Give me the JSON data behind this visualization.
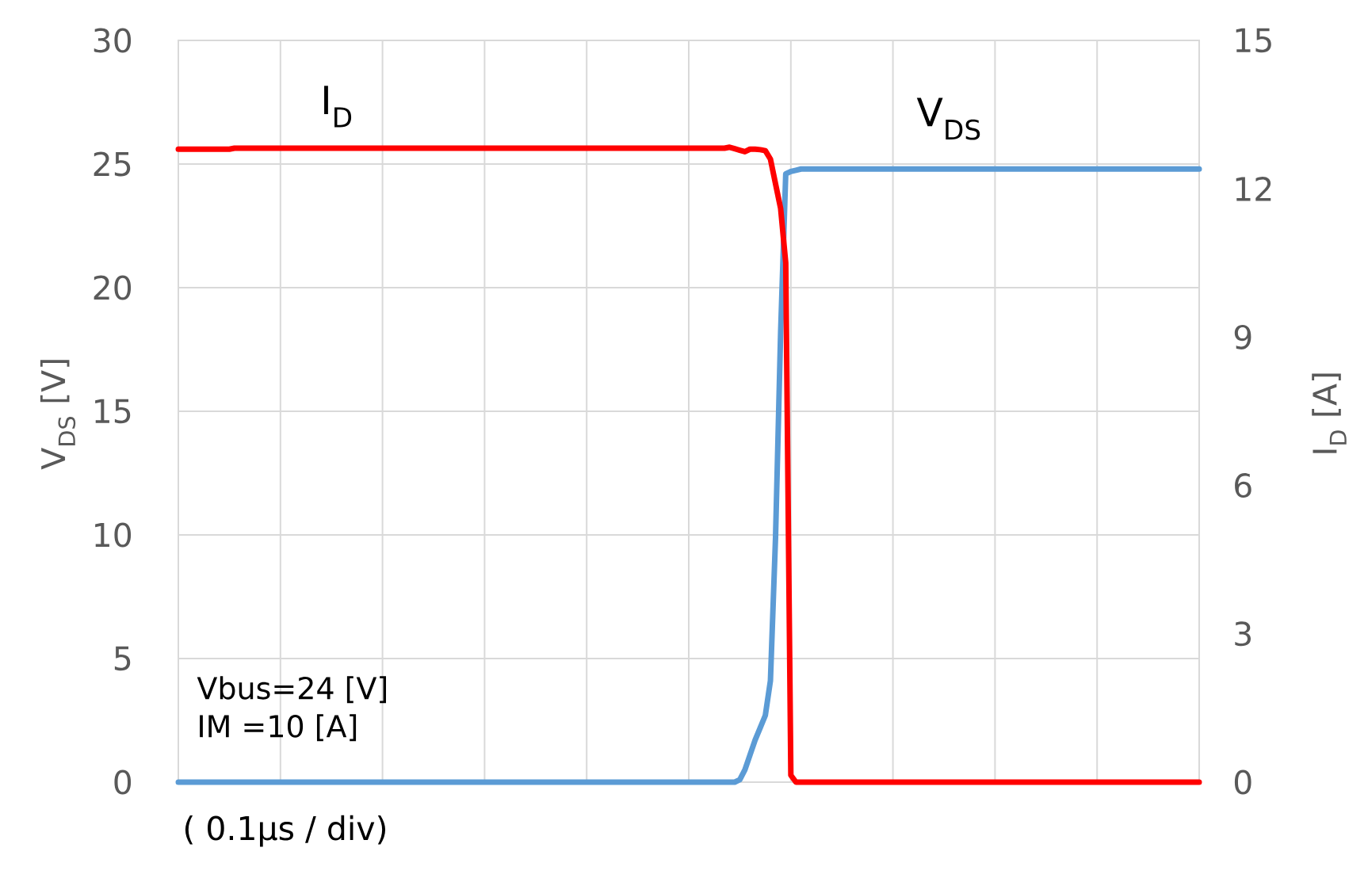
{
  "chart_data": {
    "type": "line",
    "xlabel": "( 0.1µs / div)",
    "ylabel": "V$_{DS}$ [V]",
    "y2label": "I$_{D}$ [A]",
    "annotations": [
      "Vbus=24 [V]",
      "IM =10 [A]"
    ],
    "categories": [
      null,
      null,
      null,
      null,
      null,
      null,
      null,
      null,
      null,
      null,
      null,
      null,
      null,
      null,
      null,
      null,
      null,
      null,
      null,
      null,
      null,
      null,
      null,
      null,
      null,
      null,
      null,
      null,
      null,
      null,
      null,
      null,
      null,
      null,
      null,
      null,
      null,
      null,
      null,
      null,
      null,
      null,
      null,
      null,
      null,
      null,
      null,
      null,
      null,
      null,
      null,
      null,
      null,
      null,
      null,
      null,
      null,
      null,
      null,
      null,
      null,
      null,
      null,
      null,
      null,
      null,
      null,
      null,
      null,
      null,
      null,
      null,
      null,
      null,
      null,
      null,
      null,
      null,
      null,
      null,
      null,
      null,
      null,
      null,
      null,
      null,
      null,
      null,
      null,
      null,
      null,
      null,
      null,
      null,
      null,
      null,
      null,
      null,
      null,
      null,
      null,
      null,
      null,
      null,
      null,
      null,
      null,
      null,
      null,
      null,
      null,
      null,
      null,
      null,
      null,
      null,
      null,
      null,
      null,
      null,
      null,
      null,
      null,
      null,
      null,
      null,
      null,
      null,
      null,
      null,
      null,
      null,
      null,
      null,
      null,
      null,
      null,
      null,
      null,
      null,
      null,
      null,
      null,
      null,
      null,
      null,
      null,
      null,
      null,
      null,
      null,
      null,
      null,
      null,
      null,
      null,
      null,
      null,
      null,
      null,
      null,
      null,
      null,
      null,
      null,
      null,
      null,
      null,
      null,
      null,
      null,
      null,
      null,
      null,
      null,
      null,
      null,
      null,
      null,
      null,
      null,
      null,
      null,
      null,
      null,
      null,
      null,
      null,
      null,
      null,
      null,
      null,
      null,
      null,
      null,
      null,
      null,
      null,
      null,
      null,
      null
    ],
    "ylim": [
      0,
      30
    ],
    "yticks": [
      0,
      5,
      10,
      15,
      20,
      25,
      30
    ],
    "y2lim": [
      0,
      15
    ],
    "y2ticks": [
      0,
      3,
      6,
      9,
      12,
      15
    ],
    "grid": true,
    "marker": "none",
    "line_style": "solid",
    "series": [
      {
        "name": "V$_{DS}$",
        "color": "#5b9bd5",
        "values": [
          0,
          0,
          0,
          0,
          0,
          0,
          0,
          0,
          0,
          0,
          0,
          0,
          0,
          0,
          0,
          0,
          0,
          0,
          0,
          0,
          0,
          0,
          0,
          0,
          0,
          0,
          0,
          0,
          0,
          0,
          0,
          0,
          0,
          0,
          0,
          0,
          0,
          0,
          0,
          0,
          0,
          0,
          0,
          0,
          0,
          0,
          0,
          0,
          0,
          0,
          0,
          0,
          0,
          0,
          0,
          0,
          0,
          0,
          0,
          0,
          0,
          0,
          0,
          0,
          0,
          0,
          0,
          0,
          0,
          0,
          0,
          0,
          0,
          0,
          0,
          0,
          0,
          0,
          0,
          0,
          0,
          0,
          0,
          0,
          0,
          0,
          0,
          0,
          0,
          0,
          0,
          0,
          0,
          0,
          0,
          0,
          0,
          0,
          0,
          0,
          0,
          0,
          0,
          0,
          0,
          0,
          0,
          0,
          0,
          0,
          0.1,
          0.5,
          1.1,
          1.7,
          2.2,
          2.7,
          4.1,
          9.9,
          18.2,
          24.6,
          24.7,
          24.75,
          24.8,
          24.8,
          24.8,
          24.8,
          24.8,
          24.8,
          24.8,
          24.8,
          24.8,
          24.8,
          24.8,
          24.8,
          24.8,
          24.8,
          24.8,
          24.8,
          24.8,
          24.8,
          24.8,
          24.8,
          24.8,
          24.8,
          24.8,
          24.8,
          24.8,
          24.8,
          24.8,
          24.8,
          24.8,
          24.8,
          24.8,
          24.8,
          24.8,
          24.8,
          24.8,
          24.8,
          24.8,
          24.8,
          24.8,
          24.8,
          24.8,
          24.8,
          24.8,
          24.8,
          24.8,
          24.8,
          24.8,
          24.8,
          24.8,
          24.8,
          24.8,
          24.8,
          24.8,
          24.8,
          24.8,
          24.8,
          24.8,
          24.8,
          24.8,
          24.8,
          24.8,
          24.8,
          24.8,
          24.8,
          24.8,
          24.8,
          24.8,
          24.8,
          24.8,
          24.8,
          24.8,
          24.8,
          24.8,
          24.8,
          24.8,
          24.8,
          24.8,
          24.8,
          24.8
        ]
      },
      {
        "name": "I$_{D}$",
        "color": "#ff0000",
        "axis": "y2",
        "values": [
          12.8,
          12.8,
          12.8,
          12.8,
          12.8,
          12.8,
          12.8,
          12.8,
          12.8,
          12.8,
          12.8,
          12.82,
          12.82,
          12.82,
          12.82,
          12.82,
          12.82,
          12.82,
          12.82,
          12.82,
          12.82,
          12.82,
          12.82,
          12.82,
          12.82,
          12.82,
          12.82,
          12.82,
          12.82,
          12.82,
          12.82,
          12.82,
          12.82,
          12.82,
          12.82,
          12.82,
          12.82,
          12.82,
          12.82,
          12.82,
          12.82,
          12.82,
          12.82,
          12.82,
          12.82,
          12.82,
          12.82,
          12.82,
          12.82,
          12.82,
          12.82,
          12.82,
          12.82,
          12.82,
          12.82,
          12.82,
          12.82,
          12.82,
          12.82,
          12.82,
          12.82,
          12.82,
          12.82,
          12.82,
          12.82,
          12.82,
          12.82,
          12.82,
          12.82,
          12.82,
          12.82,
          12.82,
          12.82,
          12.82,
          12.82,
          12.82,
          12.82,
          12.82,
          12.82,
          12.82,
          12.82,
          12.82,
          12.82,
          12.82,
          12.82,
          12.82,
          12.82,
          12.82,
          12.82,
          12.82,
          12.82,
          12.82,
          12.82,
          12.82,
          12.82,
          12.82,
          12.82,
          12.82,
          12.82,
          12.82,
          12.82,
          12.82,
          12.82,
          12.82,
          12.82,
          12.82,
          12.82,
          12.82,
          12.84,
          12.81,
          12.78,
          12.75,
          12.8,
          12.8,
          12.79,
          12.77,
          12.6,
          12.1,
          11.6,
          10.5,
          0.14,
          0,
          0,
          0,
          0,
          0,
          0,
          0,
          0,
          0,
          0,
          0,
          0,
          0,
          0,
          0,
          0,
          0,
          0,
          0,
          0,
          0,
          0,
          0,
          0,
          0,
          0,
          0,
          0,
          0,
          0,
          0,
          0,
          0,
          0,
          0,
          0,
          0,
          0,
          0,
          0,
          0,
          0,
          0,
          0,
          0,
          0,
          0,
          0,
          0,
          0,
          0,
          0,
          0,
          0,
          0,
          0,
          0,
          0,
          0,
          0,
          0,
          0,
          0,
          0,
          0,
          0,
          0,
          0,
          0,
          0,
          0,
          0,
          0,
          0,
          0,
          0,
          0,
          0,
          0,
          0
        ]
      }
    ]
  }
}
